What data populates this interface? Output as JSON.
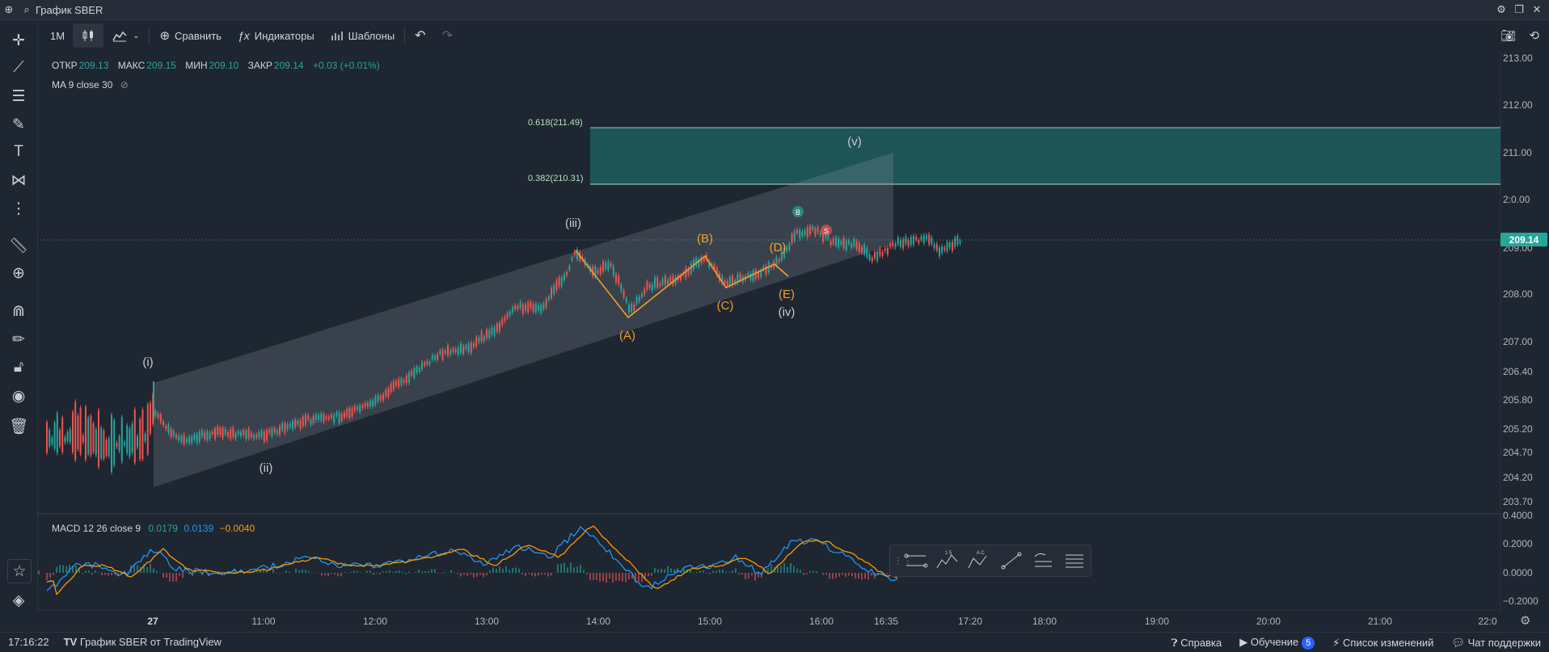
{
  "title_bar": {
    "title": "График SBER"
  },
  "toolbar": {
    "interval": "1M",
    "compare_label": "Сравнить",
    "indicators_label": "Индикаторы",
    "templates_label": "Шаблоны"
  },
  "legend": {
    "open_label": "ОТКР",
    "open": "209.13",
    "high_label": "МАКС",
    "high": "209.15",
    "low_label": "МИН",
    "low": "209.10",
    "close_label": "ЗАКР",
    "close": "209.14",
    "change": "+0.03 (+0.01%)",
    "ma": "MA 9 close 30"
  },
  "macd_legend": {
    "name": "MACD 12 26 close 9",
    "v1": "0.0179",
    "v2": "0.0139",
    "v3": "−0.0040"
  },
  "price_axis": [
    "213.00",
    "212.00",
    "211.00",
    "2:0.00",
    "209.00",
    "208.00",
    "207.00",
    "206.40",
    "205.80",
    "205.20",
    "204.70",
    "204.20",
    "203.70"
  ],
  "current_price": "209.14",
  "macd_axis": [
    "0.4000",
    "0.2000",
    "0.0000",
    "−0.2000"
  ],
  "time_axis": [
    "27",
    "11:00",
    "12:00",
    "13:00",
    "14:00",
    "15:00",
    "16:00",
    "16:35",
    "17:20",
    "18:00",
    "19:00",
    "20:00",
    "21:00",
    "22:0"
  ],
  "waves": {
    "i": "(i)",
    "ii": "(ii)",
    "iii": "(iii)",
    "iv": "(iv)",
    "v": "(v)",
    "A": "(A)",
    "B": "(B)",
    "C": "(C)",
    "D": "(D)",
    "E": "(E)"
  },
  "fib": {
    "upper": "0.618(211.49)",
    "lower": "0.382(210.31)"
  },
  "markers": {
    "buy": "B",
    "sell": "S"
  },
  "status_bar": {
    "time": "17:16:22",
    "brand": "График SBER от TradingView",
    "help": "Справка",
    "learning": "Обучение",
    "learning_count": "5",
    "changelog": "Список изменений",
    "support": "Чат поддержки"
  },
  "colors": {
    "up": "#26a69a",
    "down": "#ef5350",
    "accent": "#f59f2a",
    "macd": "#2196f3",
    "signal": "#ff9800"
  }
}
